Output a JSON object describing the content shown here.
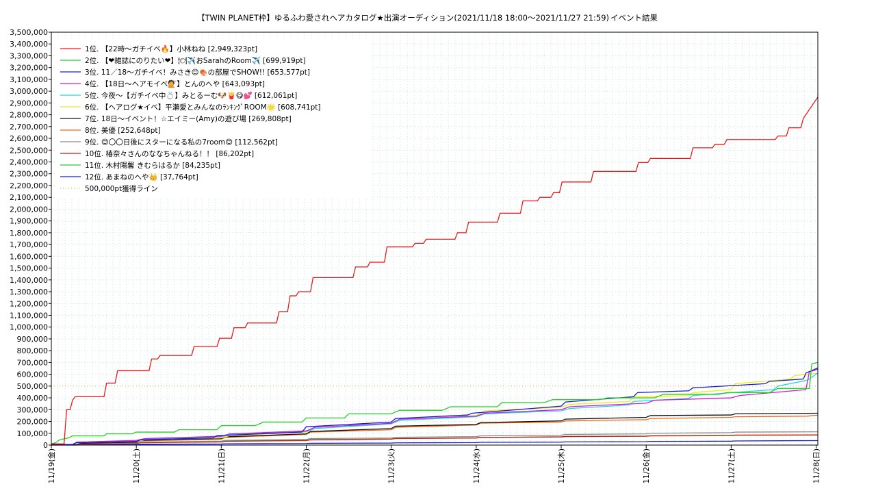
{
  "chart_data": {
    "type": "line",
    "title": "【TWIN PLANET枠】ゆるふわ愛されヘアカタログ★出演オーディション(2021/11/18 18:00〜2021/11/27 21:59)",
    "subtitle": "イベント結果",
    "ylim": [
      0,
      3500000
    ],
    "ytick_step": 100000,
    "ytick_labels": [
      "0",
      "100,000",
      "200,000",
      "300,000",
      "400,000",
      "500,000",
      "600,000",
      "700,000",
      "800,000",
      "900,000",
      "1,000,000",
      "1,100,000",
      "1,200,000",
      "1,300,000",
      "1,400,000",
      "1,500,000",
      "1,600,000",
      "1,700,000",
      "1,800,000",
      "1,900,000",
      "2,000,000",
      "2,100,000",
      "2,200,000",
      "2,300,000",
      "2,400,000",
      "2,500,000",
      "2,600,000",
      "2,700,000",
      "2,800,000",
      "2,900,000",
      "3,000,000",
      "3,100,000",
      "3,200,000",
      "3,300,000",
      "3,400,000",
      "3,500,000"
    ],
    "xlim": [
      0,
      9.02
    ],
    "xtick_labels": [
      "11/19(金)",
      "11/20(土)",
      "11/21(日)",
      "11/22(月)",
      "11/23(火)",
      "11/24(水)",
      "11/25(木)",
      "11/26(金)",
      "11/27(土)",
      "11/28(日)"
    ],
    "grid": true,
    "legend": "top-left",
    "series": [
      {
        "name": "1位. 【22時〜ガチイベ🔥】小林ねね [2,949,323pt]",
        "color": "#e8191b",
        "x": [
          -0.05,
          0.15,
          0.18,
          0.22,
          0.25,
          0.28,
          0.62,
          0.65,
          0.75,
          0.78,
          1.15,
          1.18,
          1.25,
          1.28,
          1.65,
          1.68,
          1.95,
          1.98,
          2.12,
          2.15,
          2.28,
          2.31,
          2.65,
          2.68,
          2.78,
          2.81,
          2.88,
          2.91,
          3.05,
          3.08,
          3.55,
          3.58,
          3.72,
          3.75,
          3.92,
          3.95,
          4.25,
          4.28,
          4.38,
          4.41,
          4.75,
          4.78,
          4.88,
          4.91,
          5.25,
          5.28,
          5.52,
          5.55,
          5.72,
          5.75,
          5.88,
          5.91,
          5.98,
          6.01,
          6.35,
          6.38,
          6.88,
          6.91,
          7.02,
          7.05,
          7.52,
          7.55,
          7.78,
          7.81,
          7.92,
          7.95,
          8.52,
          8.55,
          8.65,
          8.68,
          8.82,
          8.85,
          9.02
        ],
        "y": [
          10000,
          10000,
          300000,
          300000,
          380000,
          410000,
          410000,
          525000,
          525000,
          630000,
          630000,
          730000,
          730000,
          760000,
          760000,
          835000,
          835000,
          905000,
          905000,
          995000,
          995000,
          1035000,
          1035000,
          1130000,
          1130000,
          1265000,
          1265000,
          1300000,
          1300000,
          1420000,
          1420000,
          1510000,
          1510000,
          1550000,
          1550000,
          1680000,
          1680000,
          1710000,
          1710000,
          1745000,
          1745000,
          1800000,
          1800000,
          1890000,
          1890000,
          1965000,
          1965000,
          2070000,
          2070000,
          2100000,
          2100000,
          2140000,
          2140000,
          2230000,
          2230000,
          2320000,
          2320000,
          2395000,
          2395000,
          2430000,
          2430000,
          2520000,
          2520000,
          2550000,
          2550000,
          2590000,
          2590000,
          2620000,
          2620000,
          2690000,
          2690000,
          2770000,
          2949323
        ]
      },
      {
        "name": "2位. 【❤雑誌にのりたい❤】🍽✈️おSarahのRoom✈️ [699,919pt]",
        "color": "#23d123",
        "x": [
          -0.05,
          0.05,
          0.1,
          0.2,
          0.25,
          0.62,
          0.65,
          0.95,
          1.0,
          1.45,
          1.5,
          1.95,
          2.0,
          2.4,
          2.5,
          2.95,
          3.0,
          3.45,
          3.5,
          4.0,
          4.1,
          4.6,
          4.7,
          5.25,
          5.3,
          5.8,
          5.9,
          6.45,
          6.55,
          7.1,
          7.2,
          7.85,
          7.95,
          8.45,
          8.55,
          8.92,
          8.95,
          9.02
        ],
        "y": [
          10000,
          20000,
          45000,
          60000,
          78000,
          78000,
          95000,
          95000,
          110000,
          110000,
          130000,
          130000,
          165000,
          165000,
          195000,
          195000,
          230000,
          230000,
          265000,
          265000,
          295000,
          295000,
          325000,
          325000,
          360000,
          360000,
          385000,
          385000,
          400000,
          400000,
          430000,
          430000,
          445000,
          445000,
          480000,
          480000,
          690000,
          699919
        ]
      },
      {
        "name": "3位. 11／18〜ガチイベ！みさき😊🍖の部屋でSHOW!! [653,577pt]",
        "color": "#1a1acc",
        "x": [
          -0.05,
          0.25,
          0.3,
          1.0,
          1.05,
          1.9,
          1.95,
          2.95,
          3.0,
          4.0,
          4.05,
          4.9,
          4.95,
          6.0,
          6.05,
          6.85,
          6.9,
          7.5,
          7.55,
          8.4,
          8.45,
          8.85,
          8.88,
          9.02
        ],
        "y": [
          5000,
          5000,
          20000,
          30000,
          45000,
          60000,
          80000,
          110000,
          155000,
          195000,
          225000,
          255000,
          270000,
          330000,
          365000,
          410000,
          445000,
          460000,
          485000,
          520000,
          540000,
          560000,
          610000,
          653577
        ]
      },
      {
        "name": "4位. 【18日〜ヘアモイベ💇】とんのへや [643,093pt]",
        "color": "#d319d3",
        "x": [
          -0.05,
          0.25,
          0.3,
          1.0,
          1.1,
          2.0,
          2.1,
          3.0,
          3.1,
          4.0,
          4.1,
          5.0,
          5.1,
          6.0,
          6.1,
          7.0,
          7.1,
          8.0,
          8.1,
          8.88,
          8.92,
          9.02
        ],
        "y": [
          5000,
          5000,
          25000,
          40000,
          55000,
          75000,
          95000,
          120000,
          150000,
          185000,
          220000,
          245000,
          270000,
          300000,
          325000,
          355000,
          380000,
          400000,
          420000,
          470000,
          620000,
          643093
        ]
      },
      {
        "name": "5位. 今夜〜【ガチイベ中💍】みとるーむ🐶🍟😋💕 [612,061pt]",
        "color": "#1ad9e0",
        "x": [
          -0.05,
          0.25,
          0.3,
          1.0,
          1.1,
          2.0,
          2.1,
          3.0,
          3.1,
          4.0,
          4.1,
          5.0,
          5.1,
          6.0,
          6.1,
          6.8,
          6.85,
          7.5,
          7.55,
          8.5,
          8.55,
          8.9,
          9.02
        ],
        "y": [
          5000,
          5000,
          20000,
          35000,
          50000,
          70000,
          90000,
          115000,
          140000,
          180000,
          210000,
          240000,
          265000,
          290000,
          310000,
          340000,
          370000,
          395000,
          420000,
          470000,
          500000,
          550000,
          612061
        ]
      },
      {
        "name": "6位. 【ヘアログ★イベ】平瀬愛とみんなのﾗﾝｷﾝｸﾞROOM🌟 [608,741pt]",
        "color": "#f0ea1e",
        "x": [
          -0.05,
          0.25,
          0.3,
          1.0,
          1.1,
          2.0,
          2.1,
          3.0,
          3.1,
          4.0,
          4.1,
          5.0,
          5.1,
          6.0,
          6.1,
          6.8,
          6.85,
          7.5,
          7.55,
          8.0,
          8.05,
          8.7,
          8.75,
          9.02
        ],
        "y": [
          5000,
          5000,
          20000,
          30000,
          45000,
          60000,
          80000,
          110000,
          140000,
          180000,
          215000,
          250000,
          290000,
          320000,
          345000,
          370000,
          410000,
          420000,
          445000,
          470000,
          520000,
          560000,
          590000,
          608741
        ]
      },
      {
        "name": "7位. 18日〜イベント！☆エイミー(Amy)の遊び場 [269,808pt]",
        "color": "#111111",
        "x": [
          -0.05,
          0.3,
          0.35,
          1.0,
          1.05,
          2.0,
          2.05,
          3.0,
          3.05,
          4.0,
          4.05,
          5.0,
          5.05,
          6.0,
          6.05,
          7.0,
          7.05,
          8.0,
          8.05,
          9.02
        ],
        "y": [
          3000,
          3000,
          15000,
          25000,
          40000,
          55000,
          70000,
          95000,
          115000,
          140000,
          160000,
          175000,
          190000,
          205000,
          220000,
          235000,
          250000,
          255000,
          265000,
          269808
        ]
      },
      {
        "name": "8位. 美優 [252,648pt]",
        "color": "#ee6a1a",
        "x": [
          -0.05,
          0.3,
          0.35,
          1.0,
          1.05,
          2.0,
          2.05,
          3.0,
          3.05,
          4.0,
          4.05,
          5.0,
          5.05,
          6.0,
          6.05,
          7.0,
          7.05,
          8.0,
          8.05,
          8.9,
          8.95,
          9.02
        ],
        "y": [
          3000,
          3000,
          12000,
          22000,
          35000,
          50000,
          65000,
          90000,
          110000,
          130000,
          150000,
          170000,
          185000,
          195000,
          205000,
          215000,
          225000,
          235000,
          240000,
          245000,
          250000,
          252648
        ]
      },
      {
        "name": "9位. 😊〇〇日後にスターになる私の7room😊 [112,562pt]",
        "color": "#8a8a8a",
        "x": [
          -0.05,
          0.3,
          0.35,
          1.0,
          1.05,
          2.0,
          2.05,
          3.0,
          3.05,
          4.0,
          4.05,
          5.0,
          5.05,
          6.0,
          6.05,
          7.0,
          7.05,
          8.0,
          8.05,
          9.02
        ],
        "y": [
          2000,
          2000,
          10000,
          18000,
          25000,
          33000,
          40000,
          48000,
          55000,
          60000,
          66000,
          72000,
          78000,
          84000,
          90000,
          95000,
          100000,
          105000,
          110000,
          112562
        ]
      },
      {
        "name": "10位. 椿奈々さんのななちゃんねる！！ [86,202pt]",
        "color": "#c71a1a",
        "x": [
          -0.05,
          0.3,
          0.35,
          1.0,
          1.05,
          2.0,
          2.05,
          3.0,
          3.05,
          4.0,
          4.05,
          5.0,
          5.05,
          6.0,
          6.05,
          7.0,
          7.05,
          8.0,
          8.05,
          9.02
        ],
        "y": [
          1000,
          1000,
          8000,
          14000,
          20000,
          26000,
          32000,
          38000,
          44000,
          50000,
          55000,
          60000,
          65000,
          70000,
          73000,
          76000,
          79000,
          82000,
          85000,
          86202
        ]
      },
      {
        "name": "11位. 木村陽馨 きむらはるか [84,235pt]",
        "color": "#2ac92a",
        "x": [
          -0.05,
          0.3,
          0.35,
          1.0,
          1.05,
          2.0,
          2.05,
          3.0,
          3.05,
          4.0,
          4.05,
          5.0,
          5.05,
          6.0,
          6.05,
          7.0,
          7.05,
          8.0,
          8.05,
          9.02
        ],
        "y": [
          1000,
          1000,
          10000,
          16000,
          22000,
          28000,
          34000,
          40000,
          46000,
          52000,
          56000,
          60000,
          64000,
          68000,
          71000,
          74000,
          77000,
          80000,
          83000,
          84235
        ]
      },
      {
        "name": "12位. あまねのへや👑 [37,764pt]",
        "color": "#1a1acc",
        "x": [
          -0.05,
          0.3,
          0.35,
          1.0,
          1.05,
          2.0,
          2.05,
          3.0,
          3.05,
          4.0,
          4.05,
          5.0,
          5.05,
          6.0,
          6.05,
          7.0,
          7.05,
          8.0,
          8.05,
          9.02
        ],
        "y": [
          500,
          500,
          3000,
          5000,
          7000,
          9000,
          11000,
          13000,
          15000,
          17000,
          19000,
          21000,
          23000,
          25000,
          27000,
          29000,
          31000,
          33000,
          35000,
          37764
        ]
      }
    ],
    "reference_line": {
      "name": "500,000pt獲得ライン",
      "value": 500000,
      "color": "#c9b24a"
    }
  }
}
